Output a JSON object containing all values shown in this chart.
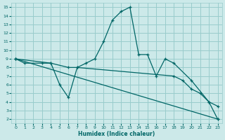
{
  "xlabel": "Humidex (Indice chaleur)",
  "bg_color": "#cce9e9",
  "grid_color": "#99cccc",
  "line_color": "#006666",
  "xlim": [
    -0.5,
    23.5
  ],
  "ylim": [
    1.5,
    15.5
  ],
  "xticks": [
    0,
    1,
    2,
    3,
    4,
    5,
    6,
    7,
    8,
    9,
    10,
    11,
    12,
    13,
    14,
    15,
    16,
    17,
    18,
    19,
    20,
    21,
    22,
    23
  ],
  "yticks": [
    2,
    3,
    4,
    5,
    6,
    7,
    8,
    9,
    10,
    11,
    12,
    13,
    14,
    15
  ],
  "line1_x": [
    0,
    1,
    3,
    4,
    5,
    6,
    7,
    8,
    9,
    10,
    11,
    12,
    13,
    14,
    15,
    16,
    17,
    18,
    20,
    22,
    23
  ],
  "line1_y": [
    9,
    8.5,
    8.5,
    8.5,
    6,
    4.5,
    8,
    8.5,
    9,
    11,
    13.5,
    14.5,
    15,
    9.5,
    9.5,
    7,
    9,
    8.5,
    6.5,
    4,
    2
  ],
  "line2_x": [
    0,
    23
  ],
  "line2_y": [
    9,
    2
  ],
  "line3_x": [
    0,
    4,
    6,
    7,
    18,
    19,
    20,
    21,
    22,
    23
  ],
  "line3_y": [
    9,
    8.5,
    8,
    8,
    7,
    6.5,
    5.5,
    5,
    4,
    3.5
  ]
}
